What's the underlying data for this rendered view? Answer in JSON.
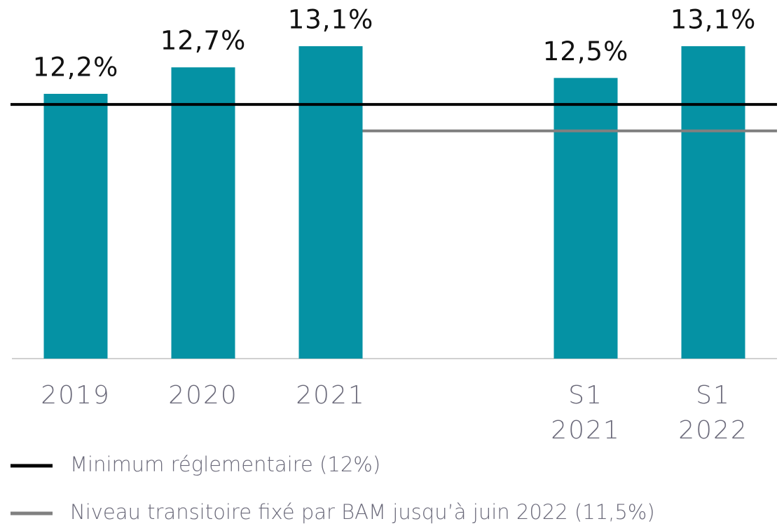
{
  "chart_data": {
    "type": "bar",
    "categories": [
      "2019",
      "2020",
      "2021",
      null,
      "S1 2021",
      "S1 2022"
    ],
    "values": [
      12.2,
      12.7,
      13.1,
      null,
      12.5,
      13.1
    ],
    "value_labels": [
      "12,2%",
      "12,7%",
      "13,1%",
      null,
      "12,5%",
      "13,1%"
    ],
    "color": "#0592a4",
    "ylim": [
      7.2,
      13.8
    ],
    "reference_lines": [
      {
        "name": "Minimum réglementaire (12%)",
        "value": 12,
        "color": "#000000"
      },
      {
        "name": "Niveau transitoire fixé par BAM jusqu’à juin 2022 (11,5%)",
        "value": 11.5,
        "color": "#808080"
      }
    ]
  }
}
